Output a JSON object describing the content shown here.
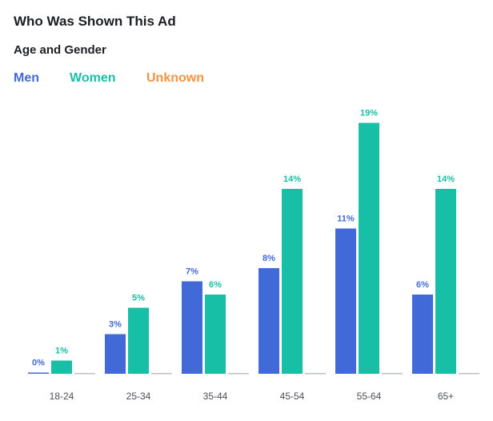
{
  "header": {
    "title": "Who Was Shown This Ad",
    "subtitle": "Age and Gender"
  },
  "colors": {
    "men": "#4169d8",
    "women": "#16bfa6",
    "unknown": "#f5923e",
    "axis": "#bcc0c4",
    "tick_text": "#4b4f56"
  },
  "chart_data": {
    "type": "bar",
    "title": "Age and Gender",
    "xlabel": "",
    "ylabel": "",
    "ylim": [
      0,
      20
    ],
    "legend_position": "top-left",
    "categories": [
      "18-24",
      "25-34",
      "35-44",
      "45-54",
      "55-64",
      "65+"
    ],
    "series": [
      {
        "name": "Men",
        "color": "#4169d8",
        "values": [
          0,
          3,
          7,
          8,
          11,
          6
        ],
        "labels": [
          "0%",
          "3%",
          "7%",
          "8%",
          "11%",
          "6%"
        ]
      },
      {
        "name": "Women",
        "color": "#16bfa6",
        "values": [
          1,
          5,
          6,
          14,
          19,
          14
        ],
        "labels": [
          "1%",
          "5%",
          "6%",
          "14%",
          "19%",
          "14%"
        ]
      },
      {
        "name": "Unknown",
        "color": "#f5923e",
        "values": [
          0,
          0,
          0,
          0,
          0,
          0
        ],
        "labels": [
          "",
          "",
          "",
          "",
          "",
          ""
        ]
      }
    ]
  }
}
